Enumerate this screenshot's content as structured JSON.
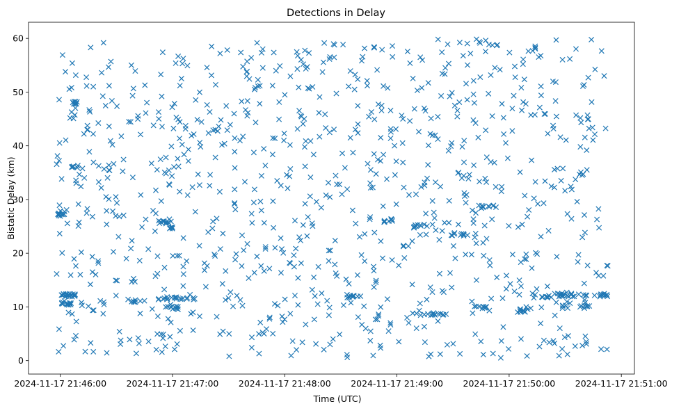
{
  "chart_data": {
    "type": "scatter",
    "title": "Detections in Delay",
    "xlabel": "Time (UTC)",
    "ylabel": "Bistatic Delay (km)",
    "x_axis_type": "time",
    "x_range": [
      "2024-11-17 21:45:43",
      "2024-11-17 21:51:07"
    ],
    "ylim": [
      -2.5,
      63
    ],
    "x_ticks": [
      "2024-11-17 21:46:00",
      "2024-11-17 21:47:00",
      "2024-11-17 21:48:00",
      "2024-11-17 21:49:00",
      "2024-11-17 21:50:00",
      "2024-11-17 21:51:00"
    ],
    "y_ticks": [
      0,
      10,
      20,
      30,
      40,
      50,
      60
    ],
    "grid": false,
    "marker": "x",
    "color": "#1f77b4",
    "data_window": [
      "2024-11-17 21:45:58",
      "2024-11-17 21:50:53"
    ],
    "point_count": 1200,
    "clusters": [
      {
        "start": "2024-11-17 21:46:00",
        "end": "2024-11-17 21:46:08",
        "y": 12.2,
        "n": 18
      },
      {
        "start": "2024-11-17 21:46:00",
        "end": "2024-11-17 21:46:06",
        "y": 10.6,
        "n": 10
      },
      {
        "start": "2024-11-17 21:45:58",
        "end": "2024-11-17 21:46:02",
        "y": 27.2,
        "n": 8
      },
      {
        "start": "2024-11-17 21:46:06",
        "end": "2024-11-17 21:46:10",
        "y": 48.0,
        "n": 8
      },
      {
        "start": "2024-11-17 21:46:06",
        "end": "2024-11-17 21:46:08",
        "y": 36.0,
        "n": 4
      },
      {
        "start": "2024-11-17 21:46:58",
        "end": "2024-11-17 21:47:00",
        "y": 24.6,
        "n": 6
      },
      {
        "start": "2024-11-17 21:46:52",
        "end": "2024-11-17 21:47:00",
        "y": 25.8,
        "n": 10
      },
      {
        "start": "2024-11-17 21:46:50",
        "end": "2024-11-17 21:47:13",
        "y": 11.6,
        "n": 18
      },
      {
        "start": "2024-11-17 21:46:55",
        "end": "2024-11-17 21:47:03",
        "y": 9.8,
        "n": 10
      },
      {
        "start": "2024-11-17 21:46:38",
        "end": "2024-11-17 21:46:45",
        "y": 11.0,
        "n": 6
      },
      {
        "start": "2024-11-17 21:48:33",
        "end": "2024-11-17 21:48:40",
        "y": 12.0,
        "n": 10
      },
      {
        "start": "2024-11-17 21:48:53",
        "end": "2024-11-17 21:48:58",
        "y": 26.0,
        "n": 8
      },
      {
        "start": "2024-11-17 21:49:05",
        "end": "2024-11-17 21:49:13",
        "y": 25.0,
        "n": 8
      },
      {
        "start": "2024-11-17 21:49:05",
        "end": "2024-11-17 21:49:28",
        "y": 8.6,
        "n": 16
      },
      {
        "start": "2024-11-17 21:49:40",
        "end": "2024-11-17 21:49:48",
        "y": 10.0,
        "n": 10
      },
      {
        "start": "2024-11-17 21:49:28",
        "end": "2024-11-17 21:49:38",
        "y": 23.5,
        "n": 10
      },
      {
        "start": "2024-11-17 21:49:43",
        "end": "2024-11-17 21:49:53",
        "y": 28.6,
        "n": 10
      },
      {
        "start": "2024-11-17 21:50:03",
        "end": "2024-11-17 21:50:10",
        "y": 9.3,
        "n": 8
      },
      {
        "start": "2024-11-17 21:50:13",
        "end": "2024-11-17 21:50:23",
        "y": 12.0,
        "n": 10
      },
      {
        "start": "2024-11-17 21:50:23",
        "end": "2024-11-17 21:50:53",
        "y": 12.2,
        "n": 34
      },
      {
        "start": "2024-11-17 21:50:28",
        "end": "2024-11-17 21:50:43",
        "y": 10.0,
        "n": 12
      },
      {
        "start": "2024-11-17 21:50:38",
        "end": "2024-11-17 21:50:43",
        "y": 45.0,
        "n": 4
      },
      {
        "start": "2024-11-17 21:50:13",
        "end": "2024-11-17 21:50:15",
        "y": 58.3,
        "n": 3
      }
    ]
  }
}
